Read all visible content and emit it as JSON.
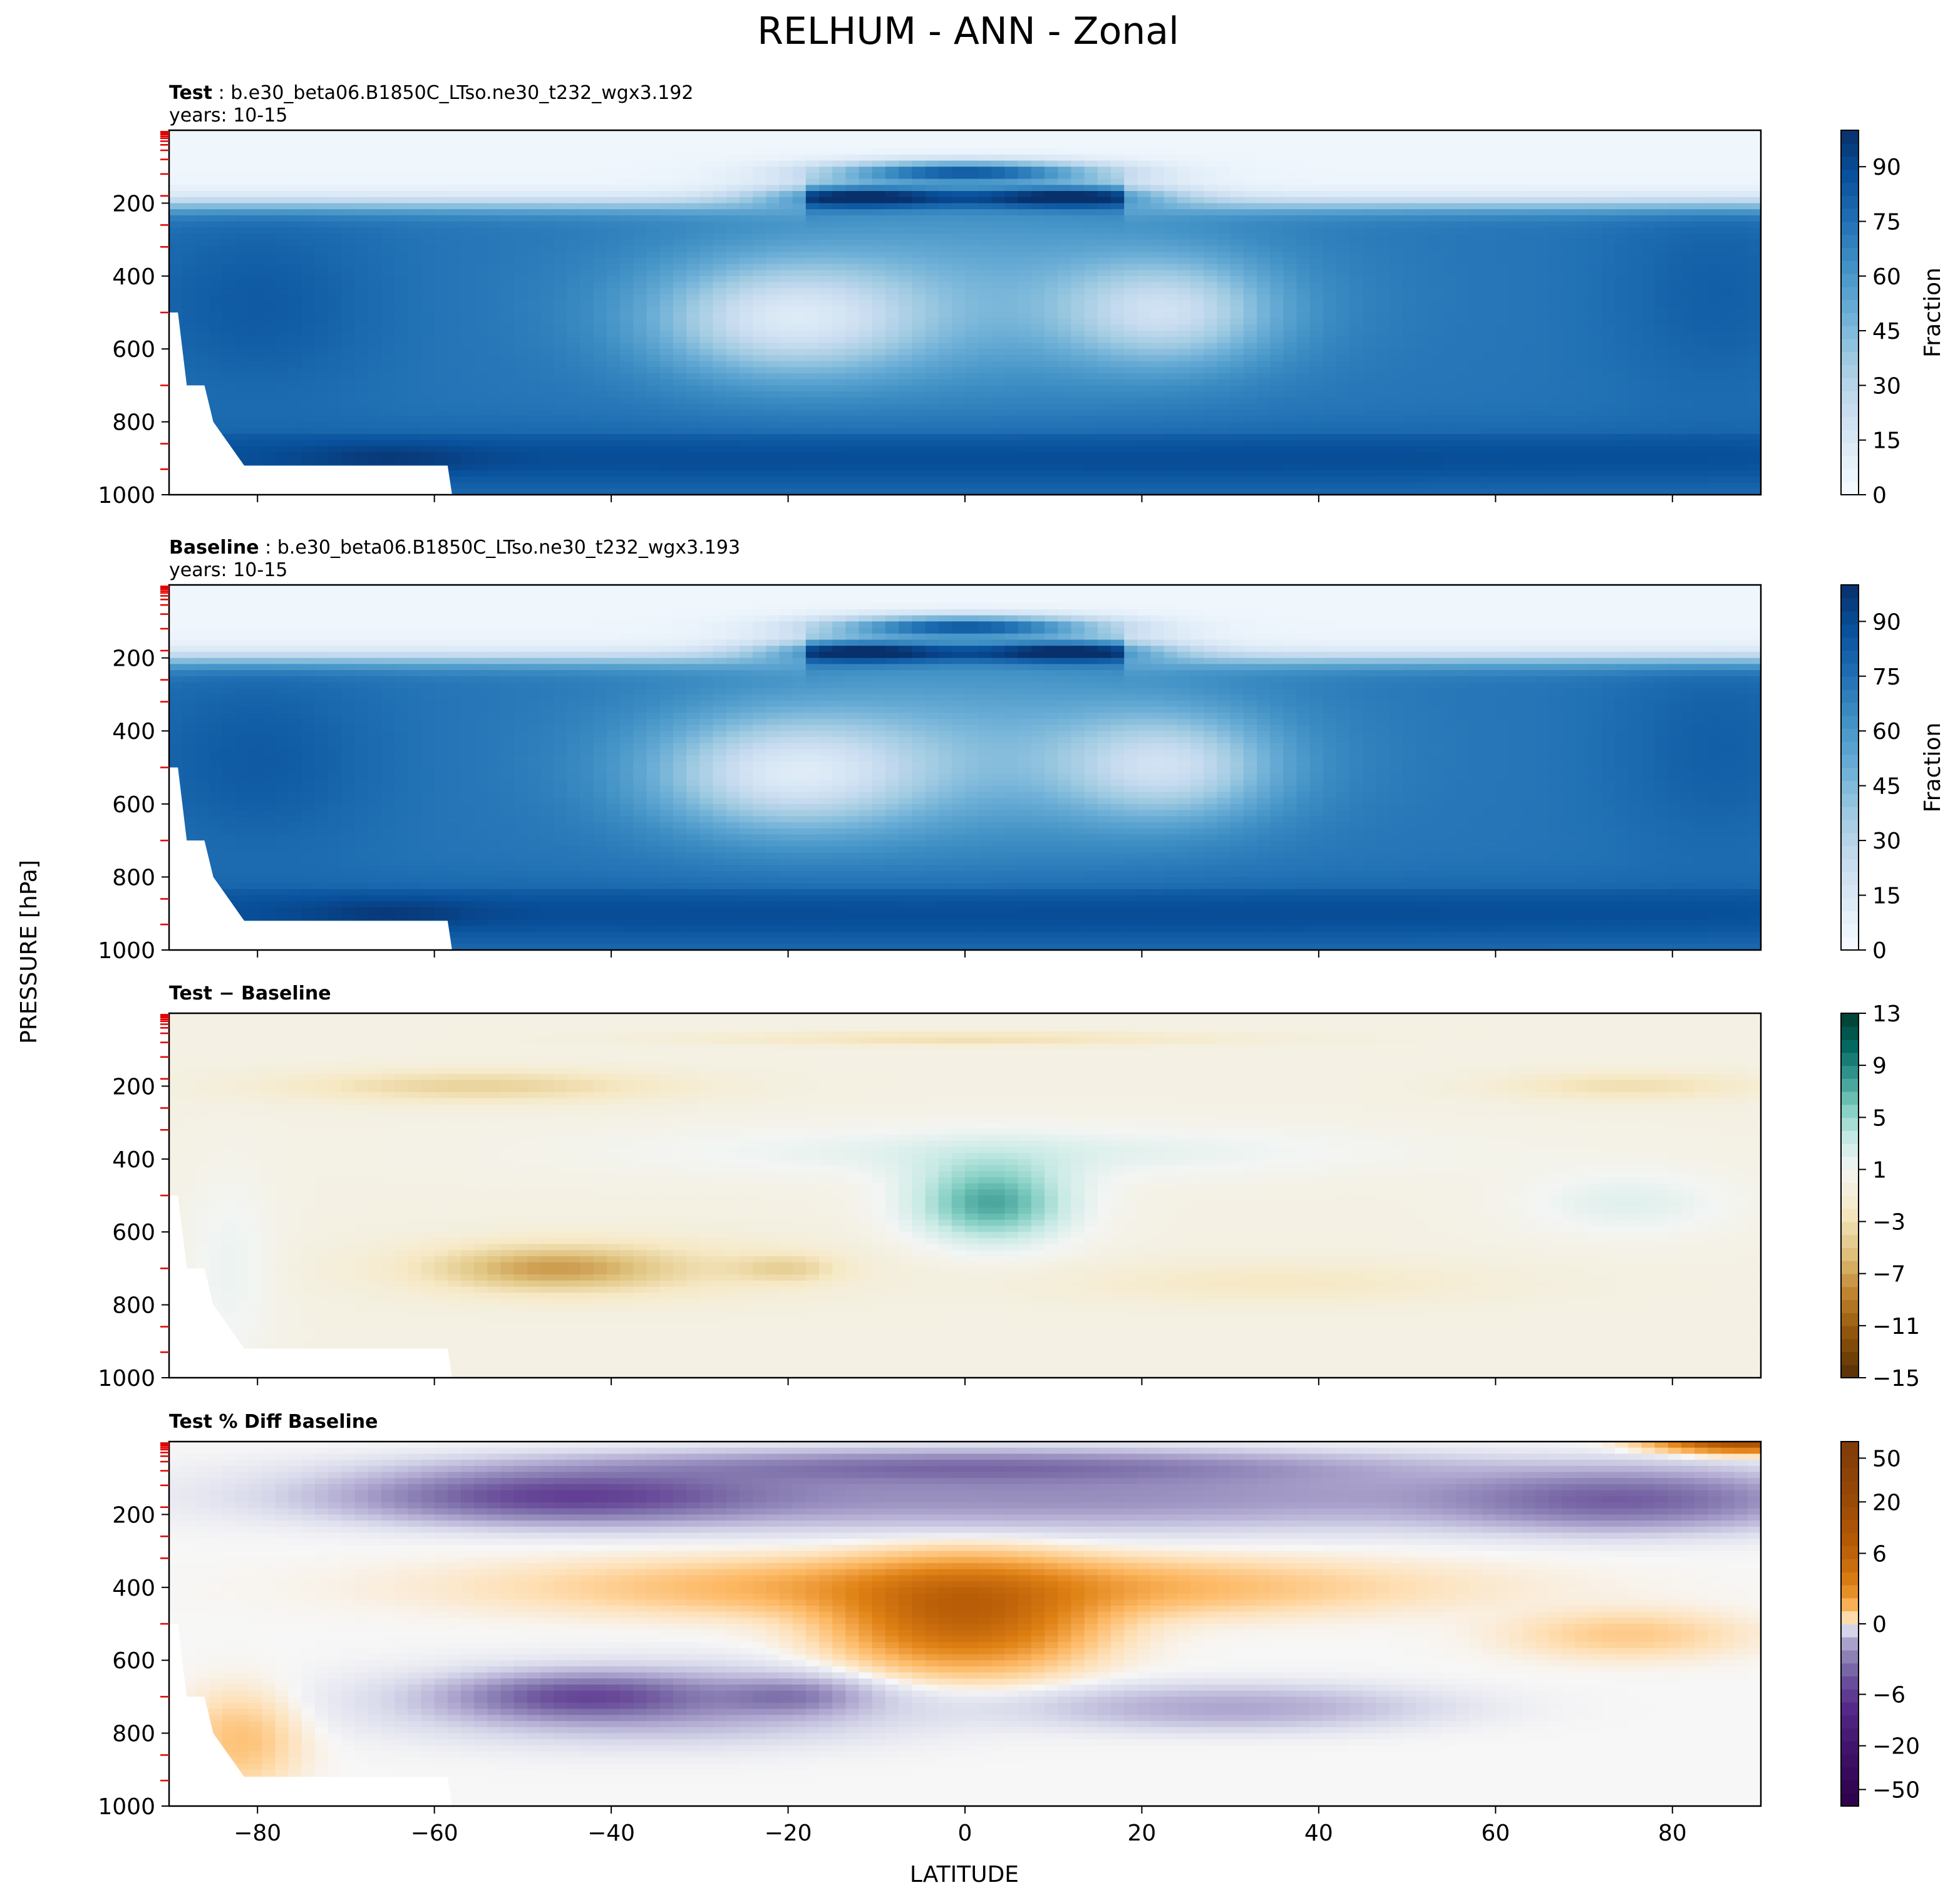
{
  "figure": {
    "title": "RELHUM - ANN - Zonal",
    "shared_ylabel": "PRESSURE [hPa]",
    "shared_xlabel": "LATITUDE"
  },
  "chart_data": [
    {
      "type": "heatmap",
      "panel": "test",
      "title_bold": "Test",
      "title_rest": " : b.e30_beta06.B1850C_LTso.ne30_t232_wgx3.192",
      "subtitle": "years: 10-15",
      "xlim": [
        -90,
        90
      ],
      "ylim": [
        1000,
        0
      ],
      "xticks": [
        -80,
        -60,
        -40,
        -20,
        0,
        20,
        40,
        60,
        80
      ],
      "yticks": [
        200,
        400,
        600,
        800,
        1000
      ],
      "colormap": "Blues",
      "colorbar": {
        "label": "Fraction",
        "range": [
          0,
          100
        ],
        "ticks": [
          "0",
          "15",
          "30",
          "45",
          "60",
          "75",
          "90"
        ],
        "tick_values": [
          0,
          15,
          30,
          45,
          60,
          75,
          90
        ]
      },
      "features": [
        {
          "name": "dry stratosphere",
          "lat": [
            -90,
            90
          ],
          "pressure": [
            0,
            200
          ],
          "value": 5
        },
        {
          "name": "tropical tropopause moist band",
          "lat": [
            -15,
            15
          ],
          "pressure": [
            80,
            160
          ],
          "value": 85
        },
        {
          "name": "subtropical dry zone SH",
          "lat": [
            -30,
            -10
          ],
          "pressure": [
            350,
            650
          ],
          "value": 25
        },
        {
          "name": "subtropical dry zone NH",
          "lat": [
            15,
            30
          ],
          "pressure": [
            350,
            600
          ],
          "value": 28
        },
        {
          "name": "moist boundary layer",
          "lat": [
            -55,
            90
          ],
          "pressure": [
            850,
            1000
          ],
          "value": 90
        },
        {
          "name": "moist polar troposphere",
          "lat": [
            -90,
            -60
          ],
          "pressure": [
            250,
            850
          ],
          "value": 80
        }
      ]
    },
    {
      "type": "heatmap",
      "panel": "baseline",
      "title_bold": "Baseline",
      "title_rest": " : b.e30_beta06.B1850C_LTso.ne30_t232_wgx3.193",
      "subtitle": "years: 10-15",
      "xlim": [
        -90,
        90
      ],
      "ylim": [
        1000,
        0
      ],
      "xticks": [
        -80,
        -60,
        -40,
        -20,
        0,
        20,
        40,
        60,
        80
      ],
      "yticks": [
        200,
        400,
        600,
        800,
        1000
      ],
      "colormap": "Blues",
      "colorbar": {
        "label": "Fraction",
        "range": [
          0,
          100
        ],
        "ticks": [
          "0",
          "15",
          "30",
          "45",
          "60",
          "75",
          "90"
        ],
        "tick_values": [
          0,
          15,
          30,
          45,
          60,
          75,
          90
        ]
      },
      "features": [
        {
          "name": "dry stratosphere",
          "lat": [
            -90,
            90
          ],
          "pressure": [
            0,
            200
          ],
          "value": 5
        },
        {
          "name": "tropical tropopause moist band",
          "lat": [
            -15,
            15
          ],
          "pressure": [
            80,
            160
          ],
          "value": 85
        },
        {
          "name": "subtropical dry zone SH",
          "lat": [
            -30,
            -10
          ],
          "pressure": [
            350,
            650
          ],
          "value": 24
        },
        {
          "name": "subtropical dry zone NH",
          "lat": [
            15,
            30
          ],
          "pressure": [
            350,
            600
          ],
          "value": 26
        },
        {
          "name": "moist boundary layer",
          "lat": [
            -55,
            90
          ],
          "pressure": [
            850,
            1000
          ],
          "value": 90
        },
        {
          "name": "moist polar troposphere",
          "lat": [
            -90,
            -60
          ],
          "pressure": [
            250,
            850
          ],
          "value": 80
        }
      ]
    },
    {
      "type": "heatmap",
      "panel": "diff",
      "title_bold": "Test − Baseline",
      "title_rest": "",
      "subtitle": "",
      "xlim": [
        -90,
        90
      ],
      "ylim": [
        1000,
        0
      ],
      "xticks": [
        -80,
        -60,
        -40,
        -20,
        0,
        20,
        40,
        60,
        80
      ],
      "yticks": [
        200,
        400,
        600,
        800,
        1000
      ],
      "colormap": "BrBG",
      "colorbar": {
        "label": "",
        "range": [
          -15,
          13
        ],
        "ticks": [
          "−15",
          "−11",
          "−7",
          "−3",
          "1",
          "5",
          "9",
          "13"
        ],
        "tick_values": [
          -15,
          -11,
          -7,
          -3,
          1,
          5,
          9,
          13
        ]
      },
      "features": [
        {
          "name": "upper-level drying SH",
          "lat": [
            -80,
            -35
          ],
          "pressure": [
            120,
            260
          ],
          "value": -4
        },
        {
          "name": "upper-level drying NH",
          "lat": [
            60,
            90
          ],
          "pressure": [
            150,
            260
          ],
          "value": -4
        },
        {
          "name": "tropical tropopause drying",
          "lat": [
            -30,
            20
          ],
          "pressure": [
            50,
            100
          ],
          "value": -3
        },
        {
          "name": "tropical mid-troposphere moistening",
          "lat": [
            -10,
            15
          ],
          "pressure": [
            350,
            700
          ],
          "value": 7
        },
        {
          "name": "subtropical moistening band",
          "lat": [
            -40,
            50
          ],
          "pressure": [
            280,
            450
          ],
          "value": 2
        },
        {
          "name": "SH mid-latitude drying",
          "lat": [
            -65,
            -20
          ],
          "pressure": [
            600,
            800
          ],
          "value": -4
        },
        {
          "name": "NH mid-latitude drying",
          "lat": [
            15,
            60
          ],
          "pressure": [
            650,
            850
          ],
          "value": -2
        }
      ]
    },
    {
      "type": "heatmap",
      "panel": "pctdiff",
      "title_bold": "Test % Diff Baseline",
      "title_rest": "",
      "subtitle": "",
      "xlim": [
        -90,
        90
      ],
      "ylim": [
        1000,
        0
      ],
      "xticks": [
        -80,
        -60,
        -40,
        -20,
        0,
        20,
        40,
        60,
        80
      ],
      "yticks": [
        200,
        400,
        600,
        800,
        1000
      ],
      "colormap": "PuOr",
      "colorbar": {
        "label": "",
        "range": [
          -70,
          70
        ],
        "ticks": [
          "−50",
          "−20",
          "−6",
          "0",
          "6",
          "20",
          "50"
        ],
        "tick_values": [
          -50,
          -20,
          -6,
          0,
          6,
          20,
          50
        ]
      },
      "features": [
        {
          "name": "stratospheric drying",
          "lat": [
            -80,
            90
          ],
          "pressure": [
            20,
            250
          ],
          "value": -15
        },
        {
          "name": "tropical mid-troposphere increase",
          "lat": [
            -30,
            30
          ],
          "pressure": [
            300,
            650
          ],
          "value": 15
        },
        {
          "name": "SH mid-latitude decrease",
          "lat": [
            -60,
            -15
          ],
          "pressure": [
            600,
            800
          ],
          "value": -10
        },
        {
          "name": "NH mid-latitude decrease",
          "lat": [
            15,
            60
          ],
          "pressure": [
            650,
            800
          ],
          "value": -6
        },
        {
          "name": "SH polar low-level increase",
          "lat": [
            -85,
            -70
          ],
          "pressure": [
            700,
            950
          ],
          "value": 5
        }
      ]
    }
  ]
}
